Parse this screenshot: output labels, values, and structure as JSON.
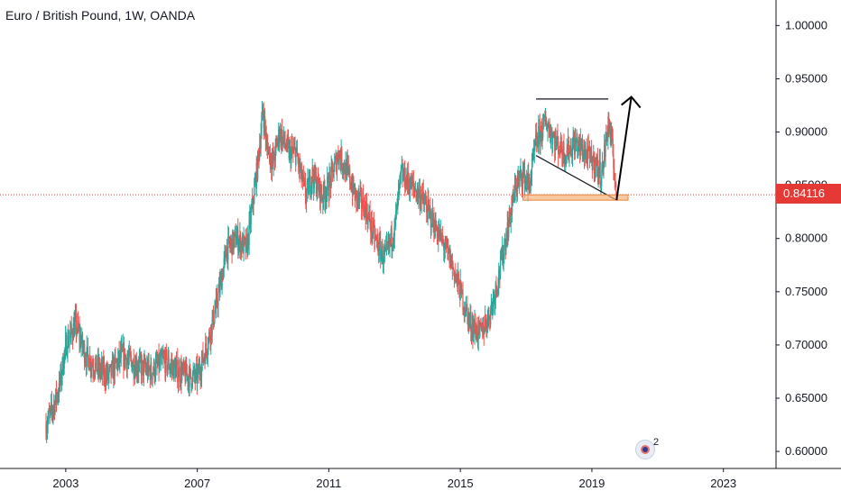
{
  "header": {
    "title": "Euro / British Pound, 1W, OANDA"
  },
  "last_price": {
    "label": "0.84116",
    "value": 0.84116,
    "color": "#e53935"
  },
  "badge": {
    "icon": "ideas-badge-icon",
    "count": "2"
  },
  "colors": {
    "up": "#26a69a",
    "down": "#ef5350",
    "axis": "#131722",
    "text": "#131722",
    "support_zone": "#f5b07a"
  },
  "chart_data": {
    "type": "line",
    "title": "Euro / British Pound, 1W, OANDA",
    "xlabel": "",
    "ylabel": "",
    "x_ticks": [
      "2003",
      "2007",
      "2011",
      "2015",
      "2019",
      "2023"
    ],
    "y_ticks": [
      "1.00000",
      "0.95000",
      "0.90000",
      "0.85000",
      "0.80000",
      "0.75000",
      "0.70000",
      "0.65000",
      "0.60000"
    ],
    "xlim": [
      2001.0,
      2024.6
    ],
    "ylim": [
      0.584,
      1.024
    ],
    "grid": false,
    "series": [
      {
        "x": [
          2002.4,
          2002.6,
          2002.8,
          2003.0,
          2003.3,
          2003.6,
          2003.9,
          2004.3,
          2004.7,
          2005.2,
          2005.6,
          2006.0,
          2006.4,
          2006.8,
          2007.0,
          2007.3,
          2007.6,
          2007.9,
          2008.2,
          2008.5,
          2008.8,
          2009.0,
          2009.1,
          2009.3,
          2009.5,
          2009.8,
          2010.0,
          2010.3,
          2010.5,
          2010.8,
          2011.0,
          2011.3,
          2011.6,
          2011.8,
          2012.1,
          2012.4,
          2012.7,
          2013.0,
          2013.2,
          2013.5,
          2013.8,
          2014.1,
          2014.4,
          2014.7,
          2015.0,
          2015.3,
          2015.6,
          2015.9,
          2016.2,
          2016.5,
          2016.7,
          2016.9,
          2017.1,
          2017.3,
          2017.6,
          2017.9,
          2018.2,
          2018.5,
          2018.8,
          2019.1,
          2019.3,
          2019.5,
          2019.6,
          2019.75
        ],
        "values": [
          0.625,
          0.64,
          0.66,
          0.7,
          0.72,
          0.69,
          0.68,
          0.67,
          0.69,
          0.68,
          0.675,
          0.685,
          0.675,
          0.67,
          0.67,
          0.7,
          0.74,
          0.79,
          0.8,
          0.79,
          0.86,
          0.92,
          0.89,
          0.87,
          0.9,
          0.88,
          0.88,
          0.84,
          0.86,
          0.84,
          0.85,
          0.88,
          0.86,
          0.84,
          0.83,
          0.8,
          0.78,
          0.81,
          0.86,
          0.85,
          0.84,
          0.82,
          0.8,
          0.78,
          0.75,
          0.72,
          0.71,
          0.73,
          0.77,
          0.82,
          0.85,
          0.86,
          0.85,
          0.89,
          0.91,
          0.89,
          0.88,
          0.89,
          0.88,
          0.87,
          0.86,
          0.91,
          0.89,
          0.841
        ]
      }
    ],
    "annotations": {
      "horizontal_resistance": {
        "x": [
          2017.3,
          2019.5
        ],
        "y": 0.931
      },
      "descending_line": {
        "x": [
          2017.3,
          2019.75
        ],
        "y": [
          0.878,
          0.836
        ]
      },
      "support_zone": {
        "x": [
          2016.9,
          2020.1
        ],
        "y": [
          0.836,
          0.841
        ]
      },
      "target_arrow": {
        "x": [
          2019.75,
          2020.2
        ],
        "y": [
          0.836,
          0.933
        ]
      }
    }
  }
}
